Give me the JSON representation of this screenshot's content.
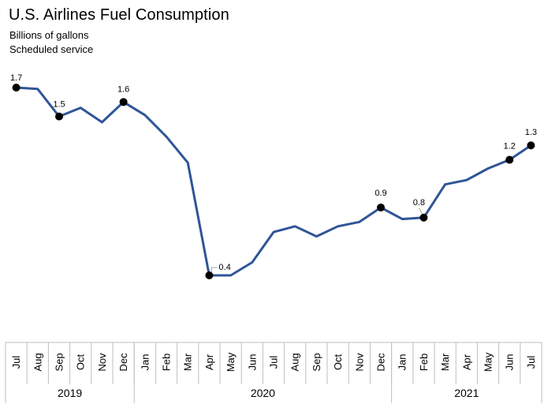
{
  "chart_data": {
    "type": "line",
    "title": "U.S. Airlines Fuel Consumption",
    "subtitles": [
      "Billions of gallons",
      "Scheduled service"
    ],
    "x": [
      "Jul",
      "Aug",
      "Sep",
      "Oct",
      "Nov",
      "Dec",
      "Jan",
      "Feb",
      "Mar",
      "Apr",
      "May",
      "Jun",
      "Jul",
      "Aug",
      "Sep",
      "Oct",
      "Nov",
      "Dec",
      "Jan",
      "Feb",
      "Mar",
      "Apr",
      "May",
      "Jun",
      "Jul"
    ],
    "year_groups": [
      {
        "label": "2019",
        "count": 6
      },
      {
        "label": "2020",
        "count": 12
      },
      {
        "label": "2021",
        "count": 7
      }
    ],
    "series": [
      {
        "values": [
          1.7,
          1.69,
          1.5,
          1.56,
          1.46,
          1.6,
          1.51,
          1.36,
          1.18,
          0.4,
          0.4,
          0.49,
          0.7,
          0.74,
          0.67,
          0.74,
          0.77,
          0.87,
          0.79,
          0.8,
          1.03,
          1.06,
          1.14,
          1.2,
          1.3
        ],
        "labeled_points": [
          {
            "index": 0,
            "label": "1.7"
          },
          {
            "index": 2,
            "label": "1.5"
          },
          {
            "index": 5,
            "label": "1.6"
          },
          {
            "index": 9,
            "label": "0.4"
          },
          {
            "index": 17,
            "label": "0.9"
          },
          {
            "index": 19,
            "label": "0.8"
          },
          {
            "index": 23,
            "label": "1.2"
          },
          {
            "index": 24,
            "label": "1.3"
          }
        ]
      }
    ],
    "grid": false,
    "legend": "none",
    "line_color": "#2F5597",
    "marker_color": "#000000"
  }
}
